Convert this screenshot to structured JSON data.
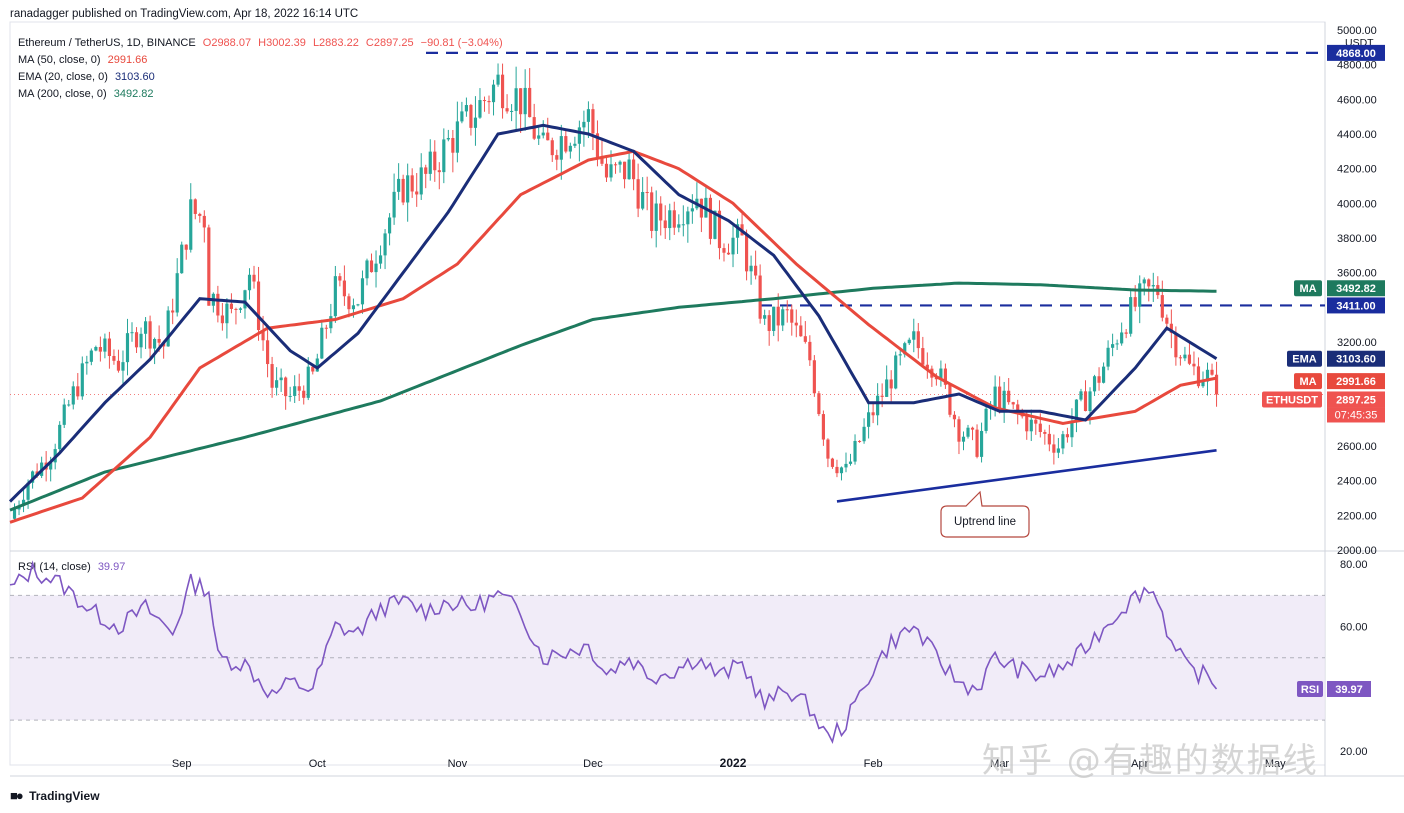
{
  "header": {
    "publisher": "ranadagger published on TradingView.com, Apr 18, 2022 16:14 UTC"
  },
  "legend": {
    "symbol": "Ethereum / TetherUS, 1D, BINANCE",
    "open": "O2988.07",
    "high": "H3002.39",
    "low": "L2883.22",
    "close": "C2897.25",
    "change": "−90.81 (−3.04%)",
    "ma50_label": "MA (50, close, 0)",
    "ma50_value": "2991.66",
    "ema20_label": "EMA (20, close, 0)",
    "ema20_value": "3103.60",
    "ma200_label": "MA (200, close, 0)",
    "ma200_value": "3492.82"
  },
  "rsi_legend": {
    "label": "RSI (14, close)",
    "value": "39.97"
  },
  "footer": {
    "brand": "TradingView"
  },
  "watermark": "知乎 @有趣的数据线",
  "colors": {
    "up": "#26a69a",
    "down": "#ef5350",
    "ema20": "#1a2d78",
    "ma50": "#e8493d",
    "ma200": "#1e7a5e",
    "level_line": "#1a2d9e",
    "rsi_line": "#7e57c2",
    "rsi_band": "#ede7f6"
  },
  "chart_data": {
    "type": "candlestick",
    "currency_unit": "USDT",
    "y_range": [
      2000,
      5000
    ],
    "price_ticks": [
      "5000.00",
      "4800.00",
      "4600.00",
      "4400.00",
      "4200.00",
      "4000.00",
      "3800.00",
      "3600.00",
      "3400.00",
      "3200.00",
      "2800.00",
      "2600.00",
      "2400.00",
      "2200.00",
      "2000.00"
    ],
    "x_ticks": [
      "Sep",
      "Oct",
      "Nov",
      "Dec",
      "2022",
      "Feb",
      "Mar",
      "Apr",
      "May"
    ],
    "price_labels": {
      "top_level": "4868.00",
      "ma200": "3492.82",
      "mid_level": "3411.00",
      "ema20": "3103.60",
      "ma50": "2991.66",
      "last": "2897.25",
      "countdown": "07:45:35"
    },
    "tag_labels": {
      "ma200": "MA",
      "ema": "EMA",
      "ma50": "MA",
      "symbol": "ETHUSDT",
      "rsi": "RSI"
    },
    "levels": [
      {
        "name": "resistance",
        "value": 4868
      },
      {
        "name": "support",
        "value": 3411
      }
    ],
    "uptrend_line": {
      "start": [
        "2022-01-24",
        2280
      ],
      "end": [
        "2022-04-18",
        2575
      ]
    },
    "annotation": "Uptrend line",
    "price_path": [
      [
        "2021-07-25",
        2180
      ],
      [
        "2021-07-29",
        2400
      ],
      [
        "2021-08-03",
        2560
      ],
      [
        "2021-08-08",
        2900
      ],
      [
        "2021-08-13",
        3180
      ],
      [
        "2021-08-18",
        3080
      ],
      [
        "2021-08-23",
        3300
      ],
      [
        "2021-08-28",
        3180
      ],
      [
        "2021-09-03",
        3950
      ],
      [
        "2021-09-06",
        3920
      ],
      [
        "2021-09-07",
        3480
      ],
      [
        "2021-09-12",
        3350
      ],
      [
        "2021-09-16",
        3600
      ],
      [
        "2021-09-21",
        2950
      ],
      [
        "2021-09-25",
        2880
      ],
      [
        "2021-09-30",
        3000
      ],
      [
        "2021-10-05",
        3500
      ],
      [
        "2021-10-10",
        3450
      ],
      [
        "2021-10-15",
        3800
      ],
      [
        "2021-10-20",
        4100
      ],
      [
        "2021-10-25",
        4150
      ],
      [
        "2021-10-30",
        4350
      ],
      [
        "2021-11-04",
        4500
      ],
      [
        "2021-11-10",
        4700
      ],
      [
        "2021-11-15",
        4600
      ],
      [
        "2021-11-20",
        4300
      ],
      [
        "2021-11-25",
        4400
      ],
      [
        "2021-11-30",
        4500
      ],
      [
        "2021-12-04",
        4150
      ],
      [
        "2021-12-09",
        4200
      ],
      [
        "2021-12-14",
        3900
      ],
      [
        "2021-12-19",
        3950
      ],
      [
        "2021-12-24",
        4050
      ],
      [
        "2021-12-29",
        3800
      ],
      [
        "2022-01-03",
        3780
      ],
      [
        "2022-01-08",
        3300
      ],
      [
        "2022-01-13",
        3350
      ],
      [
        "2022-01-18",
        3100
      ],
      [
        "2022-01-22",
        2550
      ],
      [
        "2022-01-26",
        2450
      ],
      [
        "2022-01-31",
        2750
      ],
      [
        "2022-02-05",
        3000
      ],
      [
        "2022-02-10",
        3200
      ],
      [
        "2022-02-15",
        3050
      ],
      [
        "2022-02-20",
        2700
      ],
      [
        "2022-02-24",
        2600
      ],
      [
        "2022-02-28",
        2900
      ],
      [
        "2022-03-04",
        2800
      ],
      [
        "2022-03-09",
        2700
      ],
      [
        "2022-03-14",
        2600
      ],
      [
        "2022-03-18",
        2800
      ],
      [
        "2022-03-23",
        3000
      ],
      [
        "2022-03-28",
        3300
      ],
      [
        "2022-04-02",
        3480
      ],
      [
        "2022-04-05",
        3500
      ],
      [
        "2022-04-08",
        3250
      ],
      [
        "2022-04-12",
        3050
      ],
      [
        "2022-04-16",
        3000
      ],
      [
        "2022-04-18",
        2897.25
      ]
    ],
    "ema20_path": [
      [
        "2021-07-25",
        2280
      ],
      [
        "2021-08-05",
        2560
      ],
      [
        "2021-08-15",
        2850
      ],
      [
        "2021-08-25",
        3100
      ],
      [
        "2021-09-05",
        3450
      ],
      [
        "2021-09-15",
        3430
      ],
      [
        "2021-09-25",
        3150
      ],
      [
        "2021-10-01",
        3050
      ],
      [
        "2021-10-10",
        3250
      ],
      [
        "2021-10-20",
        3600
      ],
      [
        "2021-10-30",
        3950
      ],
      [
        "2021-11-10",
        4400
      ],
      [
        "2021-11-20",
        4450
      ],
      [
        "2021-11-30",
        4400
      ],
      [
        "2021-12-10",
        4300
      ],
      [
        "2021-12-20",
        4050
      ],
      [
        "2021-12-31",
        3900
      ],
      [
        "2022-01-10",
        3700
      ],
      [
        "2022-01-20",
        3350
      ],
      [
        "2022-01-31",
        2850
      ],
      [
        "2022-02-10",
        2850
      ],
      [
        "2022-02-20",
        2900
      ],
      [
        "2022-03-01",
        2800
      ],
      [
        "2022-03-10",
        2800
      ],
      [
        "2022-03-20",
        2750
      ],
      [
        "2022-03-31",
        3050
      ],
      [
        "2022-04-07",
        3280
      ],
      [
        "2022-04-12",
        3200
      ],
      [
        "2022-04-18",
        3103.6
      ]
    ],
    "ma50_path": [
      [
        "2021-07-25",
        2160
      ],
      [
        "2021-08-10",
        2300
      ],
      [
        "2021-08-25",
        2650
      ],
      [
        "2021-09-05",
        3050
      ],
      [
        "2021-09-20",
        3280
      ],
      [
        "2021-10-05",
        3330
      ],
      [
        "2021-10-20",
        3450
      ],
      [
        "2021-11-01",
        3650
      ],
      [
        "2021-11-15",
        4050
      ],
      [
        "2021-11-30",
        4250
      ],
      [
        "2021-12-10",
        4300
      ],
      [
        "2021-12-20",
        4200
      ],
      [
        "2022-01-01",
        4000
      ],
      [
        "2022-01-15",
        3650
      ],
      [
        "2022-01-31",
        3300
      ],
      [
        "2022-02-15",
        3000
      ],
      [
        "2022-02-28",
        2820
      ],
      [
        "2022-03-15",
        2730
      ],
      [
        "2022-03-31",
        2800
      ],
      [
        "2022-04-10",
        2950
      ],
      [
        "2022-04-18",
        2991.66
      ]
    ],
    "ma200_path": [
      [
        "2021-07-25",
        2230
      ],
      [
        "2021-08-15",
        2450
      ],
      [
        "2021-09-15",
        2650
      ],
      [
        "2021-10-15",
        2860
      ],
      [
        "2021-11-15",
        3180
      ],
      [
        "2021-12-01",
        3330
      ],
      [
        "2021-12-20",
        3400
      ],
      [
        "2022-01-10",
        3450
      ],
      [
        "2022-02-01",
        3510
      ],
      [
        "2022-02-20",
        3540
      ],
      [
        "2022-03-10",
        3530
      ],
      [
        "2022-03-31",
        3500
      ],
      [
        "2022-04-18",
        3492.82
      ]
    ],
    "rsi": {
      "y_range": [
        22,
        82
      ],
      "ticks": [
        "80.00",
        "60.00",
        "40.00",
        "20.00"
      ],
      "band": [
        30,
        70
      ],
      "mid": 50,
      "path": [
        [
          "2021-07-25",
          72
        ],
        [
          "2021-07-30",
          78
        ],
        [
          "2021-08-05",
          74
        ],
        [
          "2021-08-12",
          65
        ],
        [
          "2021-08-18",
          60
        ],
        [
          "2021-08-24",
          66
        ],
        [
          "2021-08-30",
          58
        ],
        [
          "2021-09-03",
          74
        ],
        [
          "2021-09-07",
          72
        ],
        [
          "2021-09-09",
          50
        ],
        [
          "2021-09-15",
          48
        ],
        [
          "2021-09-21",
          38
        ],
        [
          "2021-09-25",
          42
        ],
        [
          "2021-09-30",
          40
        ],
        [
          "2021-10-05",
          60
        ],
        [
          "2021-10-10",
          58
        ],
        [
          "2021-10-15",
          66
        ],
        [
          "2021-10-20",
          68
        ],
        [
          "2021-10-25",
          65
        ],
        [
          "2021-10-30",
          68
        ],
        [
          "2021-11-04",
          66
        ],
        [
          "2021-11-10",
          70
        ],
        [
          "2021-11-15",
          65
        ],
        [
          "2021-11-20",
          50
        ],
        [
          "2021-11-25",
          52
        ],
        [
          "2021-11-30",
          54
        ],
        [
          "2021-12-04",
          45
        ],
        [
          "2021-12-09",
          50
        ],
        [
          "2021-12-14",
          44
        ],
        [
          "2021-12-19",
          46
        ],
        [
          "2021-12-24",
          50
        ],
        [
          "2021-12-29",
          44
        ],
        [
          "2022-01-03",
          48
        ],
        [
          "2022-01-08",
          35
        ],
        [
          "2022-01-13",
          40
        ],
        [
          "2022-01-18",
          34
        ],
        [
          "2022-01-22",
          24
        ],
        [
          "2022-01-26",
          29
        ],
        [
          "2022-01-31",
          44
        ],
        [
          "2022-02-05",
          55
        ],
        [
          "2022-02-10",
          60
        ],
        [
          "2022-02-15",
          50
        ],
        [
          "2022-02-20",
          42
        ],
        [
          "2022-02-24",
          40
        ],
        [
          "2022-02-28",
          50
        ],
        [
          "2022-03-04",
          47
        ],
        [
          "2022-03-09",
          44
        ],
        [
          "2022-03-14",
          46
        ],
        [
          "2022-03-18",
          50
        ],
        [
          "2022-03-23",
          58
        ],
        [
          "2022-03-28",
          66
        ],
        [
          "2022-04-02",
          72
        ],
        [
          "2022-04-05",
          70
        ],
        [
          "2022-04-08",
          54
        ],
        [
          "2022-04-12",
          46
        ],
        [
          "2022-04-16",
          44
        ],
        [
          "2022-04-18",
          39.97
        ]
      ]
    }
  }
}
